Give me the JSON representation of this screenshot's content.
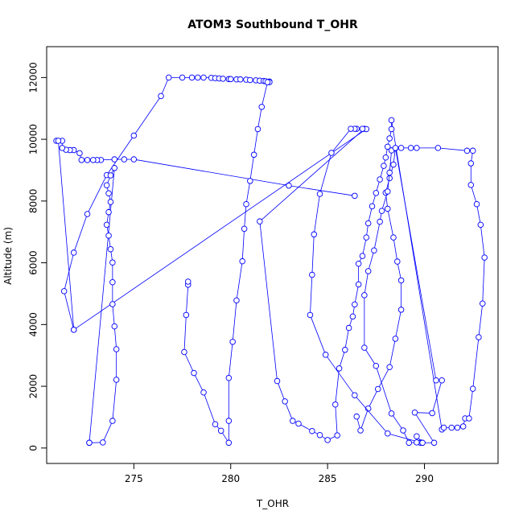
{
  "chart_data": {
    "type": "line",
    "title": "ATOM3 Southbound T_OHR",
    "xlabel": "T_OHR",
    "ylabel": "Altitude (m)",
    "xlim": [
      270.5,
      293.8
    ],
    "ylim": [
      -500,
      13000
    ],
    "x_ticks": [
      275,
      280,
      285,
      290
    ],
    "y_ticks": [
      0,
      2000,
      4000,
      6000,
      8000,
      10000,
      12000
    ],
    "line_color": "#0000ff",
    "marker": "open-circle",
    "grid": false,
    "series": [
      {
        "name": "",
        "points": [
          [
            286.4,
            8170
          ],
          [
            283.0,
            8500
          ],
          [
            275.0,
            9350
          ],
          [
            274.5,
            9350
          ],
          [
            274.0,
            9350
          ],
          [
            273.3,
            9330
          ],
          [
            273.1,
            9330
          ],
          [
            272.9,
            9330
          ],
          [
            272.6,
            9330
          ],
          [
            272.3,
            9330
          ],
          [
            272.2,
            9550
          ],
          [
            271.9,
            9650
          ],
          [
            271.7,
            9650
          ],
          [
            271.5,
            9660
          ],
          [
            271.3,
            9720
          ],
          [
            271.3,
            9950
          ],
          [
            271.0,
            9950
          ],
          [
            271.1,
            9950
          ],
          [
            271.9,
            3830
          ],
          [
            271.4,
            5080
          ],
          [
            271.9,
            6330
          ],
          [
            272.6,
            7580
          ],
          [
            273.6,
            8840
          ],
          [
            275.0,
            10120
          ],
          [
            276.4,
            11400
          ],
          [
            276.8,
            12000
          ],
          [
            277.5,
            12000
          ],
          [
            278.0,
            12000
          ],
          [
            278.3,
            12000
          ],
          [
            278.6,
            12000
          ],
          [
            279.0,
            11990
          ],
          [
            279.2,
            11980
          ],
          [
            279.4,
            11970
          ],
          [
            279.6,
            11960
          ],
          [
            279.9,
            11950
          ],
          [
            280.0,
            11950
          ],
          [
            280.3,
            11940
          ],
          [
            280.5,
            11940
          ],
          [
            280.8,
            11930
          ],
          [
            281.0,
            11920
          ],
          [
            281.3,
            11910
          ],
          [
            281.5,
            11900
          ],
          [
            281.7,
            11890
          ],
          [
            281.8,
            11880
          ],
          [
            282.0,
            11870
          ],
          [
            282.0,
            11850
          ],
          [
            281.9,
            11850
          ],
          [
            281.6,
            11050
          ],
          [
            281.4,
            10330
          ],
          [
            281.2,
            9500
          ],
          [
            281.0,
            8650
          ],
          [
            280.8,
            7900
          ],
          [
            280.7,
            7100
          ],
          [
            280.6,
            6050
          ],
          [
            280.3,
            4780
          ],
          [
            280.1,
            3440
          ],
          [
            279.9,
            2270
          ],
          [
            279.9,
            880
          ],
          [
            279.9,
            170
          ],
          [
            279.5,
            560
          ],
          [
            279.2,
            770
          ],
          [
            278.6,
            1800
          ],
          [
            278.1,
            2430
          ],
          [
            277.6,
            3110
          ],
          [
            277.7,
            4310
          ],
          [
            277.8,
            5290
          ],
          [
            277.8,
            5390
          ]
        ]
      },
      {
        "name": "",
        "points": [
          [
            286.9,
            10340
          ],
          [
            281.5,
            7340
          ],
          [
            282.4,
            2170
          ],
          [
            282.8,
            1510
          ],
          [
            283.2,
            880
          ],
          [
            283.5,
            790
          ],
          [
            284.2,
            550
          ],
          [
            284.6,
            420
          ],
          [
            285.0,
            260
          ],
          [
            285.5,
            410
          ],
          [
            285.4,
            1410
          ],
          [
            285.6,
            2580
          ],
          [
            285.9,
            3180
          ],
          [
            286.1,
            3890
          ],
          [
            286.3,
            4260
          ],
          [
            286.4,
            4650
          ],
          [
            286.6,
            5300
          ],
          [
            286.6,
            5970
          ],
          [
            286.8,
            6220
          ],
          [
            287.0,
            6820
          ],
          [
            287.1,
            7280
          ],
          [
            287.3,
            7830
          ],
          [
            287.5,
            8260
          ],
          [
            287.7,
            8700
          ],
          [
            287.9,
            9140
          ],
          [
            288.0,
            9410
          ],
          [
            288.1,
            9760
          ],
          [
            288.2,
            10030
          ],
          [
            288.3,
            10330
          ],
          [
            288.3,
            10620
          ],
          [
            290.9,
            600
          ],
          [
            291.0,
            660
          ],
          [
            291.4,
            660
          ],
          [
            291.7,
            660
          ],
          [
            292.0,
            700
          ],
          [
            292.1,
            960
          ],
          [
            292.3,
            960
          ],
          [
            292.5,
            1920
          ],
          [
            292.8,
            3590
          ],
          [
            293.0,
            4680
          ],
          [
            293.1,
            6170
          ],
          [
            292.9,
            7230
          ],
          [
            292.7,
            7900
          ],
          [
            292.4,
            8520
          ],
          [
            292.4,
            9220
          ],
          [
            292.5,
            9630
          ],
          [
            292.2,
            9630
          ],
          [
            290.7,
            9720
          ],
          [
            289.6,
            9720
          ],
          [
            289.3,
            9720
          ],
          [
            288.8,
            9720
          ],
          [
            288.5,
            9710
          ],
          [
            288.4,
            9180
          ],
          [
            288.2,
            8740
          ],
          [
            288.0,
            8270
          ],
          [
            288.1,
            7750
          ],
          [
            288.4,
            6820
          ],
          [
            288.6,
            6040
          ],
          [
            288.8,
            5430
          ],
          [
            288.8,
            4480
          ],
          [
            288.5,
            3540
          ],
          [
            288.2,
            2620
          ],
          [
            287.6,
            1910
          ],
          [
            287.1,
            1280
          ],
          [
            286.7,
            570
          ],
          [
            286.5,
            1020
          ]
        ]
      },
      {
        "name": "",
        "points": [
          [
            271.9,
            3830
          ],
          [
            287.0,
            10330
          ],
          [
            286.8,
            10340
          ],
          [
            286.5,
            10340
          ],
          [
            286.4,
            10340
          ],
          [
            286.2,
            10340
          ],
          [
            285.2,
            9560
          ],
          [
            284.6,
            8230
          ],
          [
            284.3,
            6920
          ],
          [
            284.2,
            5610
          ],
          [
            284.1,
            4310
          ],
          [
            284.9,
            3020
          ],
          [
            286.4,
            1710
          ],
          [
            288.1,
            470
          ],
          [
            289.8,
            180
          ],
          [
            289.8,
            170
          ],
          [
            289.6,
            180
          ],
          [
            289.2,
            170
          ],
          [
            288.9,
            570
          ],
          [
            288.3,
            1120
          ],
          [
            287.5,
            2660
          ],
          [
            286.9,
            3250
          ],
          [
            286.9,
            4950
          ],
          [
            287.1,
            5730
          ],
          [
            287.4,
            6400
          ],
          [
            287.7,
            7330
          ],
          [
            287.8,
            7680
          ],
          [
            288.1,
            8310
          ],
          [
            288.2,
            8920
          ],
          [
            288.3,
            9640
          ]
        ]
      },
      {
        "name": "",
        "points": [
          [
            288.5,
            9720
          ],
          [
            290.6,
            2190
          ],
          [
            290.9,
            2190
          ],
          [
            290.4,
            1130
          ],
          [
            289.5,
            1150
          ],
          [
            290.5,
            170
          ],
          [
            289.9,
            170
          ],
          [
            289.6,
            380
          ]
        ]
      },
      {
        "name": "",
        "points": [
          [
            272.7,
            170
          ],
          [
            274.0,
            9070
          ],
          [
            273.8,
            8830
          ],
          [
            273.6,
            8510
          ],
          [
            273.7,
            8250
          ],
          [
            273.8,
            7970
          ],
          [
            273.7,
            7640
          ],
          [
            273.6,
            7230
          ],
          [
            273.7,
            6880
          ],
          [
            273.8,
            6440
          ],
          [
            273.9,
            6010
          ],
          [
            273.9,
            5370
          ],
          [
            273.9,
            4660
          ],
          [
            274.0,
            3940
          ],
          [
            274.1,
            3200
          ],
          [
            274.1,
            2210
          ],
          [
            273.9,
            880
          ],
          [
            273.4,
            180
          ],
          [
            272.7,
            170
          ]
        ]
      }
    ]
  }
}
